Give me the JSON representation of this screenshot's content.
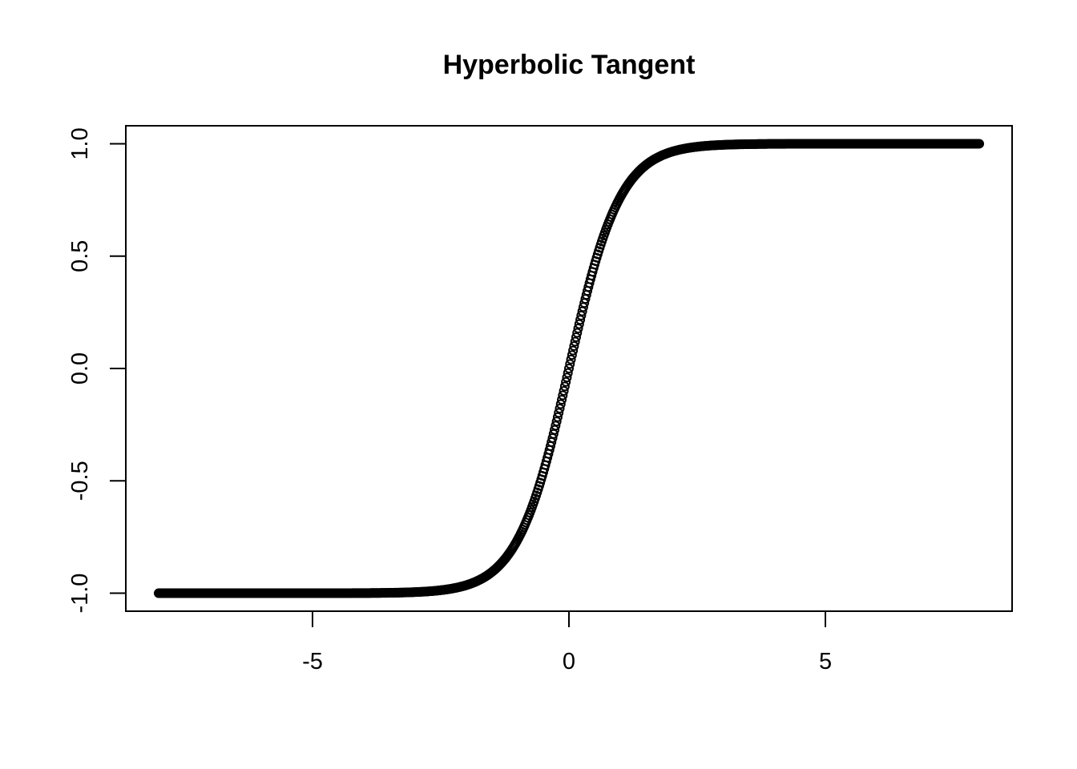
{
  "chart_data": {
    "type": "scatter",
    "title": "Hyperbolic Tangent",
    "xlabel": "",
    "ylabel": "",
    "function": "tanh",
    "x_range": [
      -8,
      8
    ],
    "n_points": 801,
    "xlim": [
      -8.64,
      8.64
    ],
    "ylim": [
      -1.08,
      1.08
    ],
    "xticks": [
      -5,
      0,
      5
    ],
    "xtick_labels": [
      "-5",
      "0",
      "5"
    ],
    "yticks": [
      -1.0,
      -0.5,
      0.0,
      0.5,
      1.0
    ],
    "ytick_labels": [
      "-1.0",
      "-0.5",
      "0.0",
      "0.5",
      "1.0"
    ],
    "marker": "open-circle",
    "color": "#000000",
    "grid": false
  }
}
